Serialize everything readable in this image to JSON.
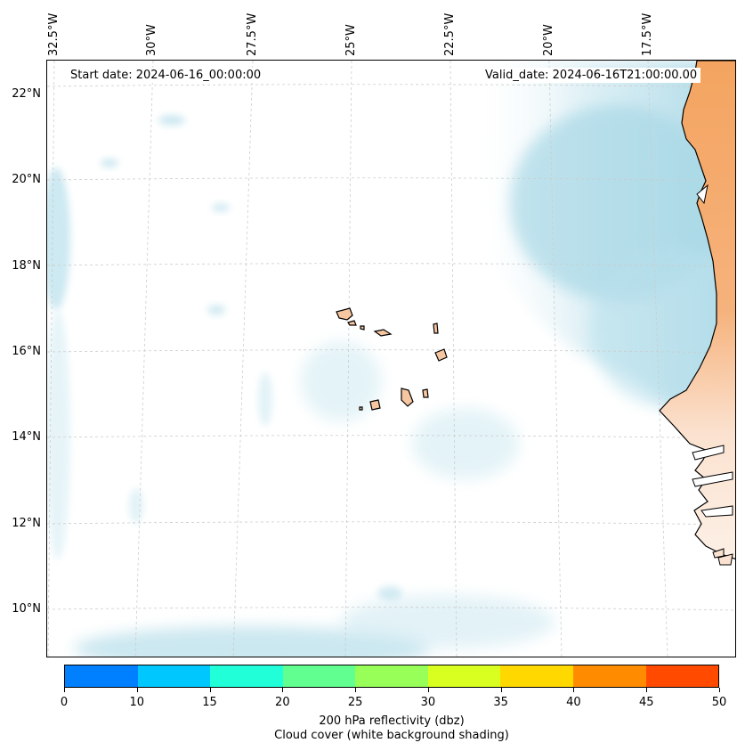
{
  "map": {
    "start_date": "Start date: 2024-06-16_00:00:00",
    "valid_date": "Valid_date: 2024-06-16T21:00:00.00",
    "longitude_labels": [
      "32.5°W",
      "30°W",
      "27.5°W",
      "25°W",
      "22.5°W",
      "20°W",
      "17.5°W"
    ],
    "latitude_labels": [
      "22°N",
      "20°N",
      "18°N",
      "16°N",
      "14°N",
      "12°N",
      "10°N"
    ],
    "land_color": "#f4a460",
    "cloud_color": "#a8d8e6",
    "grid_color": "#cccccc"
  },
  "colorbar": {
    "ticks": [
      "0",
      "10",
      "15",
      "20",
      "25",
      "30",
      "35",
      "40",
      "45",
      "50"
    ],
    "colors": [
      "#0080ff",
      "#00c8ff",
      "#20ffd8",
      "#60ff90",
      "#98ff58",
      "#d8ff20",
      "#ffd800",
      "#ff8c00",
      "#ff4a00"
    ],
    "label_line1": "200 hPa reflectivity (dbz)",
    "label_line2": "Cloud cover (white background shading)"
  }
}
